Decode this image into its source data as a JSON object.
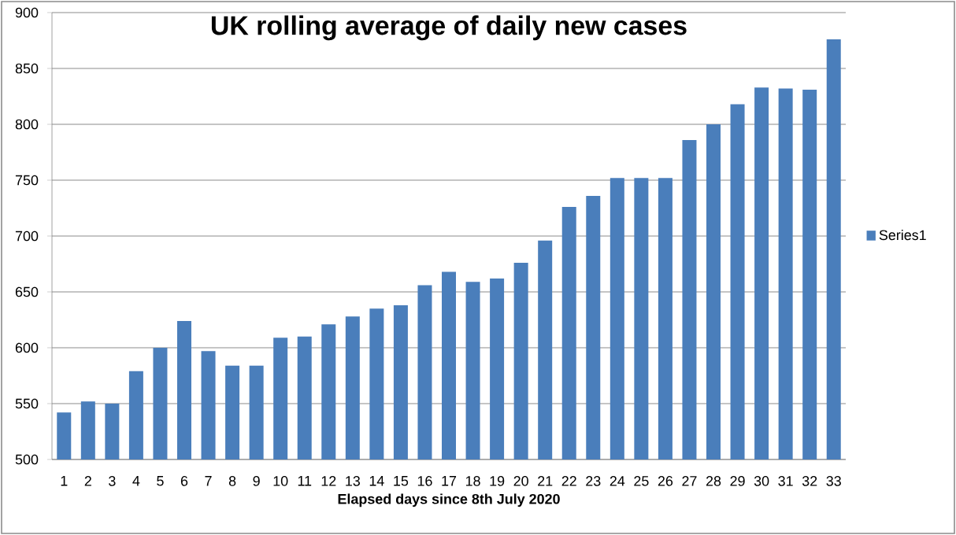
{
  "chart_data": {
    "type": "bar",
    "title": "UK rolling average of  daily new cases",
    "xlabel": "Elapsed days since 8th July 2020",
    "categories": [
      "1",
      "2",
      "3",
      "4",
      "5",
      "6",
      "7",
      "8",
      "9",
      "10",
      "11",
      "12",
      "13",
      "14",
      "15",
      "16",
      "17",
      "18",
      "19",
      "20",
      "21",
      "22",
      "23",
      "24",
      "25",
      "26",
      "27",
      "28",
      "29",
      "30",
      "31",
      "32",
      "33"
    ],
    "series": [
      {
        "name": "Series1",
        "color": "#4a7ebb",
        "values": [
          542,
          552,
          550,
          579,
          600,
          624,
          597,
          584,
          584,
          609,
          610,
          621,
          628,
          635,
          638,
          656,
          668,
          659,
          662,
          676,
          696,
          726,
          736,
          752,
          752,
          752,
          786,
          800,
          818,
          833,
          832,
          831,
          876
        ]
      }
    ],
    "ylim": [
      500,
      900
    ],
    "yticks": [
      500,
      550,
      600,
      650,
      700,
      750,
      800,
      850,
      900
    ],
    "grid": "y",
    "legend": "right"
  }
}
